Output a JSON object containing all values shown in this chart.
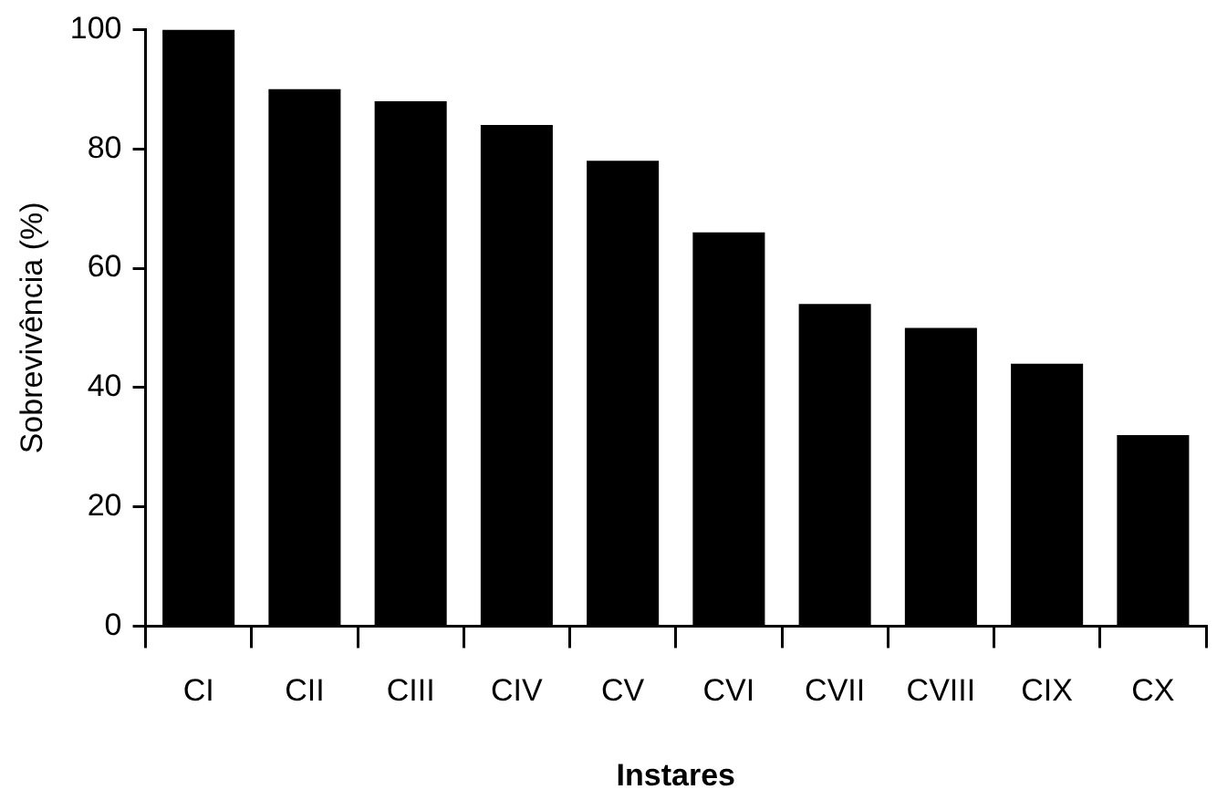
{
  "chart_data": {
    "type": "bar",
    "xlabel": "Instares",
    "ylabel": "Sobrevivência (%)",
    "categories": [
      "CI",
      "CII",
      "CIII",
      "CIV",
      "CV",
      "CVI",
      "CVII",
      "CVIII",
      "CIX",
      "CX"
    ],
    "values": [
      100,
      90,
      88,
      84,
      78,
      66,
      54,
      50,
      44,
      32
    ],
    "color": "#000000",
    "ylim": [
      0,
      100
    ],
    "yticks": [
      0,
      20,
      40,
      60,
      80,
      100
    ],
    "grid": false,
    "legend": false
  }
}
